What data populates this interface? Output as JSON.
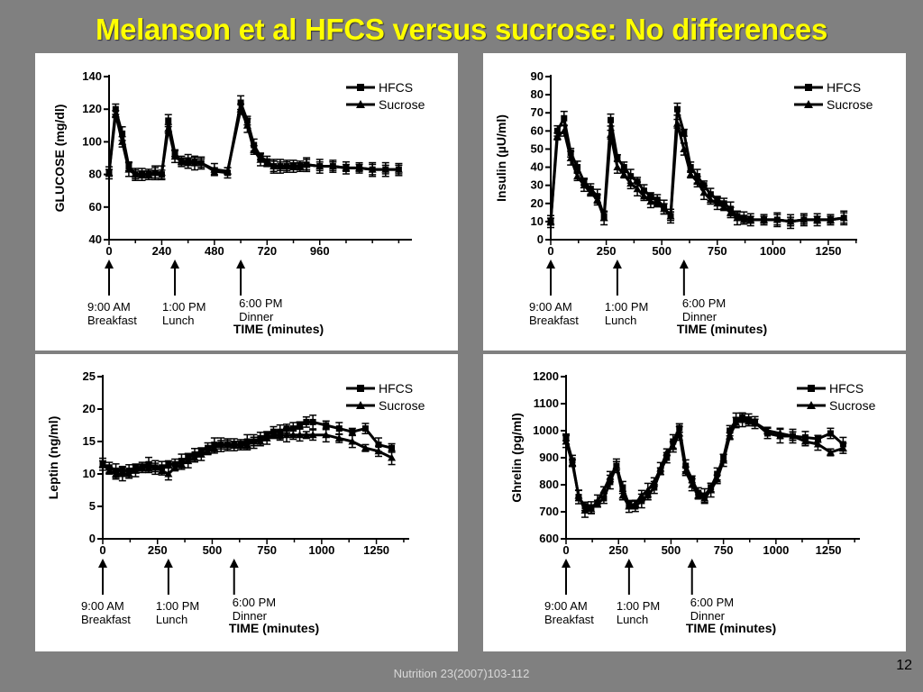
{
  "slide": {
    "title": "Melanson et al HFCS versus sucrose: No differences",
    "footer": "Nutrition 23(2007)103-112",
    "page_number": "12"
  },
  "colors": {
    "background": "#808080",
    "title": "#ffff00",
    "panel": "#ffffff",
    "line": "#000000"
  },
  "chart_data": [
    {
      "id": "glucose",
      "type": "line",
      "ylabel": "GLUCOSE (mg/dl)",
      "xlabel": "TIME (minutes)",
      "ylim": [
        40,
        140
      ],
      "yticks": [
        40,
        60,
        80,
        100,
        120,
        140
      ],
      "xlim": [
        0,
        1380
      ],
      "xticks": [
        0,
        240,
        480,
        720,
        960
      ],
      "legend_position": "top-right",
      "meals": [
        {
          "x": 0,
          "time": "9:00 AM",
          "meal": "Breakfast"
        },
        {
          "x": 300,
          "time": "1:00 PM",
          "meal": "Lunch"
        },
        {
          "x": 600,
          "time": "6:00 PM",
          "meal": "Dinner"
        }
      ],
      "series": [
        {
          "name": "HFCS",
          "marker": "square",
          "x": [
            0,
            30,
            60,
            90,
            120,
            150,
            180,
            210,
            240,
            270,
            300,
            330,
            360,
            390,
            420,
            480,
            540,
            600,
            630,
            660,
            690,
            720,
            750,
            780,
            810,
            840,
            870,
            900,
            960,
            1020,
            1080,
            1140,
            1200,
            1260,
            1320
          ],
          "y": [
            81,
            120,
            105,
            85,
            80,
            80,
            80,
            81,
            80,
            113,
            93,
            88,
            88,
            88,
            87,
            82,
            81,
            124,
            113,
            98,
            91,
            88,
            85,
            85,
            85,
            85,
            85,
            86,
            85,
            85,
            84,
            84,
            83,
            83,
            83
          ]
        },
        {
          "name": "Sucrose",
          "marker": "triangle",
          "x": [
            0,
            30,
            60,
            90,
            120,
            150,
            180,
            210,
            240,
            270,
            300,
            330,
            360,
            390,
            420,
            480,
            540,
            600,
            630,
            660,
            690,
            720,
            750,
            780,
            810,
            840,
            870,
            900,
            960,
            1020,
            1080,
            1140,
            1200,
            1260,
            1320
          ],
          "y": [
            81,
            117,
            100,
            83,
            80,
            80,
            80,
            81,
            81,
            108,
            91,
            88,
            87,
            87,
            87,
            83,
            82,
            120,
            110,
            95,
            89,
            87,
            85,
            85,
            85,
            85,
            85,
            86,
            85,
            85,
            84,
            84,
            83,
            83,
            83
          ]
        }
      ]
    },
    {
      "id": "insulin",
      "type": "line",
      "ylabel": "Insulin (µU/ml)",
      "xlabel": "TIME (minutes)",
      "ylim": [
        0,
        90
      ],
      "yticks": [
        0,
        10,
        20,
        30,
        40,
        50,
        60,
        70,
        80,
        90
      ],
      "xlim": [
        0,
        1380
      ],
      "xticks": [
        0,
        250,
        500,
        750,
        1000,
        1250
      ],
      "legend_position": "top-right",
      "meals": [
        {
          "x": 0,
          "time": "9:00 AM",
          "meal": "Breakfast"
        },
        {
          "x": 300,
          "time": "1:00 PM",
          "meal": "Lunch"
        },
        {
          "x": 600,
          "time": "6:00 PM",
          "meal": "Dinner"
        }
      ],
      "series": [
        {
          "name": "HFCS",
          "marker": "square",
          "x": [
            0,
            30,
            60,
            90,
            120,
            150,
            180,
            210,
            240,
            270,
            300,
            330,
            360,
            390,
            420,
            450,
            480,
            510,
            540,
            570,
            600,
            630,
            660,
            690,
            720,
            750,
            780,
            810,
            840,
            870,
            900,
            960,
            1020,
            1080,
            1140,
            1200,
            1260,
            1320
          ],
          "y": [
            10,
            60,
            67,
            48,
            40,
            32,
            28,
            24,
            13,
            66,
            45,
            40,
            35,
            32,
            27,
            24,
            22,
            18,
            13,
            72,
            59,
            40,
            35,
            30,
            25,
            22,
            20,
            17,
            13,
            12,
            11,
            11,
            11,
            10,
            11,
            11,
            11,
            12
          ]
        },
        {
          "name": "Sucrose",
          "marker": "triangle",
          "x": [
            0,
            30,
            60,
            90,
            120,
            150,
            180,
            210,
            240,
            270,
            300,
            330,
            360,
            390,
            420,
            450,
            480,
            510,
            540,
            570,
            600,
            630,
            660,
            690,
            720,
            750,
            780,
            810,
            840,
            870,
            900,
            960,
            1020,
            1080,
            1140,
            1200,
            1260,
            1320
          ],
          "y": [
            10,
            57,
            60,
            45,
            35,
            30,
            26,
            22,
            12,
            58,
            40,
            36,
            31,
            28,
            24,
            21,
            20,
            17,
            13,
            64,
            50,
            36,
            32,
            26,
            22,
            20,
            18,
            15,
            12,
            11,
            11,
            11,
            11,
            10,
            11,
            11,
            11,
            12
          ]
        }
      ]
    },
    {
      "id": "leptin",
      "type": "line",
      "ylabel": "Leptin (ng/ml)",
      "xlabel": "TIME (minutes)",
      "ylim": [
        0,
        25
      ],
      "yticks": [
        0,
        5,
        10,
        15,
        20,
        25
      ],
      "xlim": [
        0,
        1400
      ],
      "xticks": [
        0,
        250,
        500,
        750,
        1000,
        1250
      ],
      "legend_position": "top-right",
      "meals": [
        {
          "x": 0,
          "time": "9:00 AM",
          "meal": "Breakfast"
        },
        {
          "x": 300,
          "time": "1:00 PM",
          "meal": "Lunch"
        },
        {
          "x": 600,
          "time": "6:00 PM",
          "meal": "Dinner"
        }
      ],
      "series": [
        {
          "name": "HFCS",
          "marker": "square",
          "x": [
            0,
            30,
            60,
            90,
            120,
            150,
            180,
            210,
            240,
            270,
            300,
            330,
            360,
            390,
            420,
            450,
            480,
            510,
            540,
            570,
            600,
            630,
            660,
            690,
            720,
            750,
            780,
            810,
            840,
            870,
            900,
            930,
            960,
            1020,
            1080,
            1140,
            1200,
            1260,
            1320
          ],
          "y": [
            11.5,
            11,
            10.5,
            10.5,
            10.5,
            11,
            11,
            11.5,
            11,
            11,
            11.5,
            11.5,
            12,
            12.5,
            13,
            13.5,
            14,
            14.5,
            14.5,
            14.5,
            14.5,
            14.5,
            15,
            15,
            15.5,
            16,
            16.5,
            16.5,
            17,
            17,
            17.5,
            18,
            18,
            17.5,
            17,
            16.5,
            17,
            14.5,
            14
          ]
        },
        {
          "name": "Sucrose",
          "marker": "triangle",
          "x": [
            0,
            30,
            60,
            90,
            120,
            150,
            180,
            210,
            240,
            270,
            300,
            330,
            360,
            390,
            420,
            450,
            480,
            510,
            540,
            570,
            600,
            630,
            660,
            690,
            720,
            750,
            780,
            810,
            840,
            870,
            900,
            930,
            960,
            1020,
            1080,
            1140,
            1200,
            1260,
            1320
          ],
          "y": [
            11.5,
            10.5,
            10,
            10,
            10,
            10.5,
            11,
            11,
            11,
            10.5,
            10,
            11,
            11.5,
            12,
            12.5,
            13,
            13.5,
            14,
            14.5,
            14.5,
            14.5,
            14.5,
            14.5,
            15,
            15,
            15.5,
            16,
            16,
            16,
            16,
            16,
            16,
            16,
            16,
            15.5,
            15,
            14,
            13.5,
            12.5
          ]
        }
      ]
    },
    {
      "id": "ghrelin",
      "type": "line",
      "ylabel": "Ghrelin (pg/ml)",
      "xlabel": "TIME (minutes)",
      "ylim": [
        600,
        1200
      ],
      "yticks": [
        600,
        700,
        800,
        900,
        1000,
        1100,
        1200
      ],
      "xlim": [
        0,
        1400
      ],
      "xticks": [
        0,
        250,
        500,
        750,
        1000,
        1250
      ],
      "legend_position": "top-right",
      "meals": [
        {
          "x": 0,
          "time": "9:00 AM",
          "meal": "Breakfast"
        },
        {
          "x": 300,
          "time": "1:00 PM",
          "meal": "Lunch"
        },
        {
          "x": 600,
          "time": "6:00 PM",
          "meal": "Dinner"
        }
      ],
      "series": [
        {
          "name": "HFCS",
          "marker": "square",
          "x": [
            0,
            30,
            60,
            90,
            120,
            150,
            180,
            210,
            240,
            270,
            300,
            330,
            360,
            390,
            420,
            450,
            480,
            510,
            540,
            570,
            600,
            630,
            660,
            690,
            720,
            750,
            780,
            810,
            840,
            870,
            900,
            960,
            1020,
            1080,
            1140,
            1200,
            1260,
            1320
          ],
          "y": [
            975,
            890,
            755,
            720,
            715,
            730,
            750,
            810,
            870,
            790,
            725,
            720,
            740,
            760,
            790,
            850,
            900,
            960,
            1010,
            870,
            820,
            770,
            760,
            790,
            840,
            900,
            1000,
            1040,
            1050,
            1040,
            1030,
            990,
            980,
            980,
            975,
            970,
            990,
            950
          ]
        },
        {
          "name": "Sucrose",
          "marker": "triangle",
          "x": [
            0,
            30,
            60,
            90,
            120,
            150,
            180,
            210,
            240,
            270,
            300,
            330,
            360,
            390,
            420,
            450,
            480,
            510,
            540,
            570,
            600,
            630,
            660,
            690,
            720,
            750,
            780,
            810,
            840,
            870,
            900,
            960,
            1020,
            1080,
            1140,
            1200,
            1260,
            1320
          ],
          "y": [
            960,
            880,
            760,
            705,
            710,
            740,
            780,
            830,
            870,
            760,
            720,
            730,
            760,
            780,
            810,
            860,
            920,
            940,
            990,
            850,
            800,
            760,
            750,
            780,
            820,
            890,
            980,
            1030,
            1040,
            1035,
            1030,
            1000,
            990,
            980,
            960,
            950,
            920,
            935
          ]
        }
      ]
    }
  ]
}
